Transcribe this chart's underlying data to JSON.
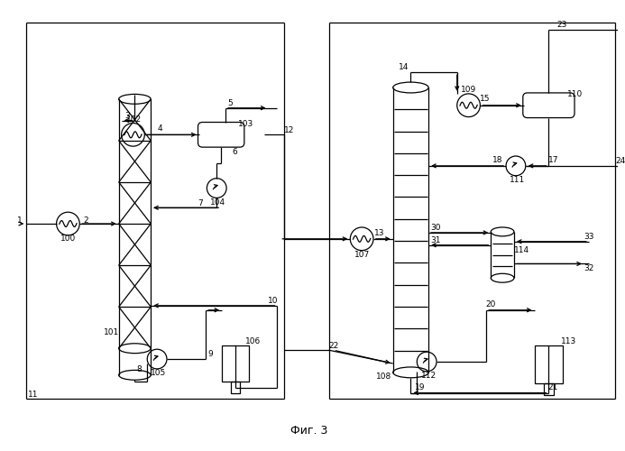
{
  "title": "Фиг. 3",
  "bg_color": "#ffffff",
  "line_color": "#000000",
  "figure_size": [
    6.93,
    5.0
  ],
  "dpi": 100
}
